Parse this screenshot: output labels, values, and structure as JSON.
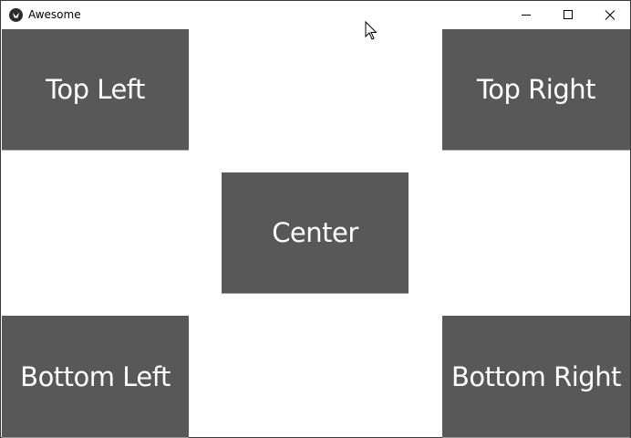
{
  "window": {
    "title": "Awesome",
    "icon": "kivy-logo-icon",
    "controls": [
      "minimize-icon",
      "maximize-icon",
      "close-icon"
    ]
  },
  "panels": {
    "top_left": "Top Left",
    "top_right": "Top Right",
    "center": "Center",
    "bottom_left": "Bottom Left",
    "bottom_right": "Bottom Right"
  },
  "colors": {
    "panel_bg": "#585858",
    "panel_text": "#ffffff",
    "window_bg": "#ffffff"
  }
}
